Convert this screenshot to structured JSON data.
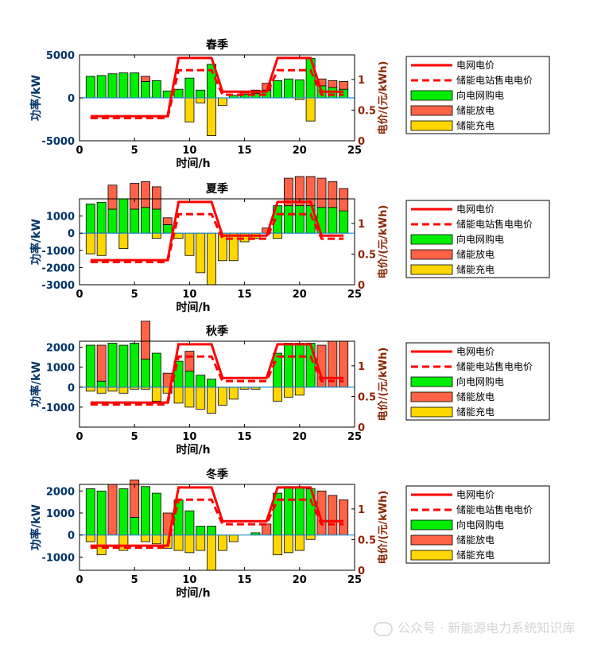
{
  "watermark": "公众号 · 新能源电力系统知识库",
  "colors": {
    "grid_buy": "#00ee00",
    "es_dis": "#ff6347",
    "es_chg": "#ffd700",
    "price": "#ff0000",
    "left_axis": "#003366",
    "right_axis": "#8b2500",
    "zero_line": "#1e8fd0"
  },
  "chart_data": [
    {
      "type": "bar",
      "title": "春季",
      "xlabel": "时间/h",
      "ylabel": "功率/kW",
      "y2label": "电价/(元/kWh)",
      "xlim": [
        0,
        25
      ],
      "ylim": [
        -5000,
        5000
      ],
      "y2lim": [
        0,
        1.4
      ],
      "xticks": [
        0,
        5,
        10,
        15,
        20,
        25
      ],
      "yticks": [
        -5000,
        0,
        5000
      ],
      "y2ticks": [
        0,
        0.5,
        1
      ],
      "x": [
        1,
        2,
        3,
        4,
        5,
        6,
        7,
        8,
        9,
        10,
        11,
        12,
        13,
        14,
        15,
        16,
        17,
        18,
        19,
        20,
        21,
        22,
        23,
        24
      ],
      "legend": [
        "电网电价",
        "储能电站售电电价",
        "向电网购电",
        "储能放电",
        "储能充电"
      ],
      "legend_position": "outside-right",
      "series": [
        {
          "name": "向电网购电",
          "kind": "bar",
          "values": [
            2500,
            2600,
            2800,
            2900,
            2900,
            1900,
            2000,
            800,
            1000,
            2300,
            900,
            3900,
            0,
            300,
            400,
            500,
            900,
            2000,
            2200,
            2100,
            4600,
            1400,
            1200,
            1000
          ]
        },
        {
          "name": "储能放电",
          "kind": "bar",
          "values": [
            0,
            0,
            0,
            0,
            0,
            600,
            0,
            0,
            0,
            0,
            0,
            0,
            0,
            0,
            200,
            400,
            800,
            0,
            0,
            0,
            0,
            800,
            800,
            900
          ]
        },
        {
          "name": "储能充电",
          "kind": "bar",
          "values": [
            0,
            0,
            0,
            0,
            0,
            0,
            0,
            0,
            0,
            -2800,
            -600,
            -4400,
            -900,
            0,
            0,
            0,
            0,
            0,
            0,
            -200,
            -2700,
            0,
            0,
            0
          ]
        },
        {
          "name": "电网电价",
          "kind": "line",
          "x": [
            1,
            8,
            9,
            12,
            13,
            17,
            18,
            21,
            22,
            24
          ],
          "values": [
            0.4,
            0.4,
            1.35,
            1.35,
            0.8,
            0.8,
            1.35,
            1.35,
            0.8,
            0.8
          ]
        },
        {
          "name": "储能电站售电电价",
          "kind": "dashed-line",
          "x": [
            1,
            8,
            9,
            12,
            13,
            17,
            18,
            21,
            22,
            24
          ],
          "values": [
            0.37,
            0.37,
            1.15,
            1.15,
            0.75,
            0.75,
            1.15,
            1.15,
            0.75,
            0.75
          ]
        }
      ]
    },
    {
      "type": "bar",
      "title": "夏季",
      "xlabel": "时间/h",
      "ylabel": "功率/kW",
      "y2label": "电价/(元/kWh)",
      "xlim": [
        0,
        25
      ],
      "ylim": [
        -3000,
        2000
      ],
      "y2lim": [
        0,
        1.4
      ],
      "xticks": [
        0,
        5,
        10,
        15,
        20,
        25
      ],
      "yticks": [
        -3000,
        -2000,
        -1000,
        0,
        1000
      ],
      "y2ticks": [
        0,
        0.5,
        1
      ],
      "x": [
        1,
        2,
        3,
        4,
        5,
        6,
        7,
        8,
        9,
        10,
        11,
        12,
        13,
        14,
        15,
        16,
        17,
        18,
        19,
        20,
        21,
        22,
        23,
        24
      ],
      "legend": [
        "电网电价",
        "储能电站售电电价",
        "向电网购电",
        "储能放电",
        "储能充电"
      ],
      "legend_position": "outside-right",
      "series": [
        {
          "name": "向电网购电",
          "kind": "bar",
          "values": [
            1700,
            1800,
            1400,
            2000,
            1400,
            1500,
            1400,
            500,
            0,
            0,
            0,
            0,
            0,
            0,
            0,
            0,
            0,
            1600,
            1600,
            1600,
            1600,
            1500,
            1500,
            1300
          ]
        },
        {
          "name": "储能放电",
          "kind": "bar",
          "values": [
            0,
            0,
            1400,
            0,
            1500,
            1500,
            1300,
            400,
            0,
            0,
            0,
            0,
            0,
            0,
            0,
            0,
            300,
            0,
            1600,
            1700,
            1700,
            1700,
            1500,
            1300
          ]
        },
        {
          "name": "储能充电",
          "kind": "bar",
          "values": [
            -1200,
            -1300,
            0,
            -900,
            0,
            0,
            -300,
            0,
            -300,
            -1300,
            -2300,
            -3000,
            -1600,
            -1600,
            -500,
            -300,
            0,
            -300,
            0,
            0,
            0,
            0,
            0,
            0
          ]
        },
        {
          "name": "电网电价",
          "kind": "line",
          "x": [
            1,
            8,
            9,
            12,
            13,
            17,
            18,
            21,
            22,
            24
          ],
          "values": [
            0.4,
            0.4,
            1.35,
            1.35,
            0.8,
            0.8,
            1.35,
            1.35,
            0.8,
            0.8
          ]
        },
        {
          "name": "储能电站售电电价",
          "kind": "dashed-line",
          "x": [
            1,
            8,
            9,
            12,
            13,
            17,
            18,
            21,
            22,
            24
          ],
          "values": [
            0.37,
            0.37,
            1.15,
            1.15,
            0.75,
            0.75,
            1.15,
            1.15,
            0.75,
            0.75
          ]
        }
      ]
    },
    {
      "type": "bar",
      "title": "秋季",
      "xlabel": "时间/h",
      "ylabel": "功率/kW",
      "y2label": "电价/(元/kWh)",
      "xlim": [
        0,
        25
      ],
      "ylim": [
        -2000,
        2300
      ],
      "y2lim": [
        0,
        1.4
      ],
      "xticks": [
        0,
        5,
        10,
        15,
        20,
        25
      ],
      "yticks": [
        -1000,
        0,
        1000,
        2000
      ],
      "y2ticks": [
        0,
        0.5,
        1
      ],
      "x": [
        1,
        2,
        3,
        4,
        5,
        6,
        7,
        8,
        9,
        10,
        11,
        12,
        13,
        14,
        15,
        16,
        17,
        18,
        19,
        20,
        21,
        22,
        23,
        24
      ],
      "legend": [
        "电网电价",
        "储能电站售电电价",
        "向电网购电",
        "储能放电",
        "储能充电"
      ],
      "legend_position": "outside-right",
      "series": [
        {
          "name": "向电网购电",
          "kind": "bar",
          "values": [
            2100,
            300,
            2200,
            2100,
            2200,
            1400,
            1700,
            0,
            1300,
            800,
            600,
            400,
            0,
            0,
            0,
            0,
            0,
            1700,
            2200,
            2200,
            2200,
            0,
            0,
            0
          ]
        },
        {
          "name": "储能放电",
          "kind": "bar",
          "values": [
            0,
            1800,
            0,
            0,
            0,
            1900,
            0,
            700,
            0,
            1000,
            0,
            0,
            0,
            0,
            0,
            0,
            0,
            0,
            0,
            0,
            0,
            2100,
            2300,
            2300
          ]
        },
        {
          "name": "储能充电",
          "kind": "bar",
          "values": [
            -200,
            -300,
            -200,
            -300,
            -100,
            -100,
            -700,
            -300,
            -800,
            -1000,
            -1100,
            -1300,
            -900,
            -600,
            -100,
            -100,
            0,
            -700,
            -500,
            -400,
            0,
            0,
            0,
            0
          ]
        },
        {
          "name": "电网电价",
          "kind": "line",
          "x": [
            1,
            8,
            9,
            12,
            13,
            17,
            18,
            21,
            22,
            24
          ],
          "values": [
            0.4,
            0.4,
            1.35,
            1.35,
            0.8,
            0.8,
            1.35,
            1.35,
            0.8,
            0.8
          ]
        },
        {
          "name": "储能电站售电电价",
          "kind": "dashed-line",
          "x": [
            1,
            8,
            9,
            12,
            13,
            17,
            18,
            21,
            22,
            24
          ],
          "values": [
            0.37,
            0.37,
            1.15,
            1.15,
            0.75,
            0.75,
            1.15,
            1.15,
            0.75,
            0.75
          ]
        }
      ]
    },
    {
      "type": "bar",
      "title": "冬季",
      "xlabel": "时间/h",
      "ylabel": "功率/kW",
      "y2label": "电价/(元/kWh)",
      "xlim": [
        0,
        25
      ],
      "ylim": [
        -1600,
        2300
      ],
      "y2lim": [
        0,
        1.4
      ],
      "xticks": [
        0,
        5,
        10,
        15,
        20,
        25
      ],
      "yticks": [
        -1000,
        0,
        1000,
        2000
      ],
      "y2ticks": [
        0,
        0.5,
        1
      ],
      "x": [
        1,
        2,
        3,
        4,
        5,
        6,
        7,
        8,
        9,
        10,
        11,
        12,
        13,
        14,
        15,
        16,
        17,
        18,
        19,
        20,
        21,
        22,
        23,
        24
      ],
      "legend": [
        "电网电价",
        "储能电站售电电价",
        "向电网购电",
        "储能放电",
        "储能充电"
      ],
      "legend_position": "outside-right",
      "series": [
        {
          "name": "向电网购电",
          "kind": "bar",
          "values": [
            2100,
            2000,
            0,
            2100,
            800,
            2200,
            1900,
            0,
            1600,
            1100,
            400,
            400,
            0,
            0,
            0,
            100,
            0,
            1900,
            2200,
            2200,
            2100,
            0,
            0,
            0
          ]
        },
        {
          "name": "储能放电",
          "kind": "bar",
          "values": [
            0,
            0,
            2300,
            0,
            1700,
            0,
            0,
            1000,
            0,
            0,
            0,
            0,
            0,
            0,
            0,
            0,
            500,
            0,
            0,
            0,
            0,
            2000,
            1800,
            1600
          ]
        },
        {
          "name": "储能充电",
          "kind": "bar",
          "values": [
            -300,
            -900,
            0,
            -700,
            0,
            -300,
            -400,
            -600,
            -700,
            -800,
            -700,
            -1600,
            -700,
            -300,
            0,
            0,
            0,
            -900,
            -800,
            -700,
            -200,
            0,
            0,
            0
          ]
        },
        {
          "name": "电网电价",
          "kind": "line",
          "x": [
            1,
            8,
            9,
            12,
            13,
            17,
            18,
            21,
            22,
            24
          ],
          "values": [
            0.4,
            0.4,
            1.35,
            1.35,
            0.8,
            0.8,
            1.35,
            1.35,
            0.8,
            0.8
          ]
        },
        {
          "name": "储能电站售电电价",
          "kind": "dashed-line",
          "x": [
            1,
            8,
            9,
            12,
            13,
            17,
            18,
            21,
            22,
            24
          ],
          "values": [
            0.37,
            0.37,
            1.15,
            1.15,
            0.75,
            0.75,
            1.15,
            1.15,
            0.75,
            0.75
          ]
        }
      ]
    }
  ]
}
